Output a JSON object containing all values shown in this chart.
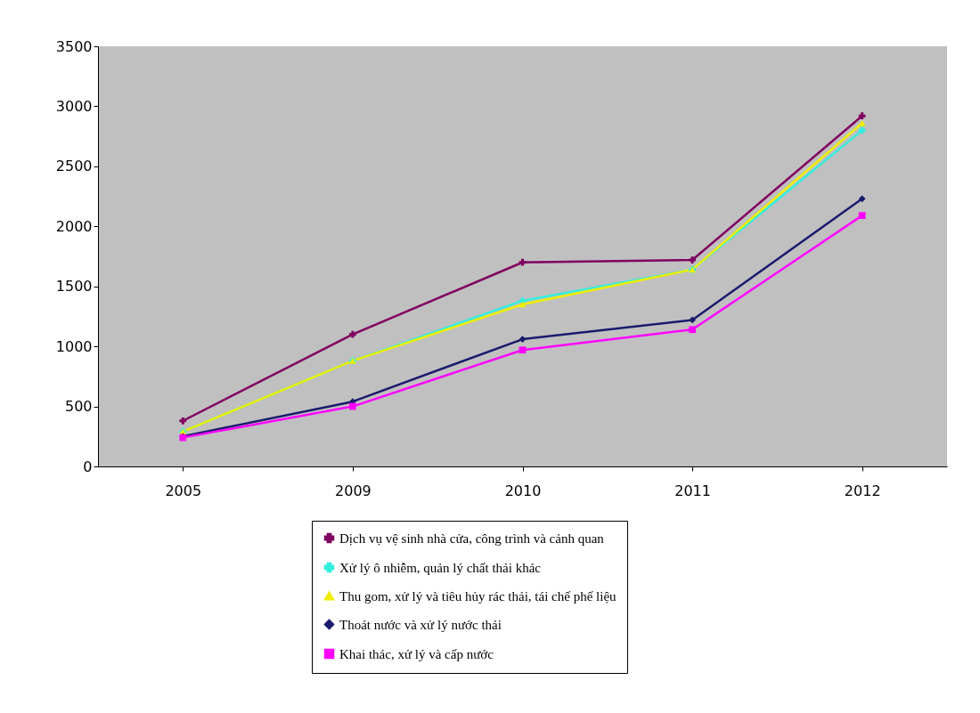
{
  "chart_data": {
    "type": "line",
    "categories": [
      "2005",
      "2009",
      "2010",
      "2011",
      "2012"
    ],
    "series": [
      {
        "name": "Dịch vụ vệ sinh nhà cửa, công trình và cảnh quan",
        "color": "#800060",
        "marker": "cross",
        "values": [
          380,
          1100,
          1700,
          1720,
          2920
        ]
      },
      {
        "name": "Xử lý ô nhiễm, quản lý chất thải khác",
        "color": "#33eedd",
        "marker": "cross",
        "values": [
          290,
          880,
          1380,
          1640,
          2800
        ]
      },
      {
        "name": "Thu gom, xử lý và tiêu hủy rác thải, tái chế phế liệu",
        "color": "#eeee00",
        "marker": "triangle",
        "values": [
          290,
          880,
          1350,
          1640,
          2860
        ]
      },
      {
        "name": "Thoát nước và xử lý nước thải",
        "color": "#1a1a6e",
        "marker": "diamond",
        "values": [
          250,
          540,
          1060,
          1220,
          2230
        ]
      },
      {
        "name": "Khai thác, xử lý và cấp nước",
        "color": "#ff00ff",
        "marker": "square",
        "values": [
          240,
          500,
          970,
          1140,
          2090
        ]
      }
    ],
    "ylim": [
      0,
      3500
    ],
    "yticks": [
      0,
      500,
      1000,
      1500,
      2000,
      2500,
      3000,
      3500
    ],
    "grid": false,
    "legend": "bottom"
  }
}
